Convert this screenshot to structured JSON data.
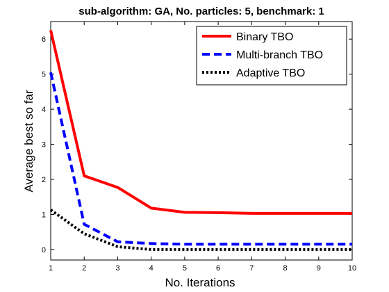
{
  "chart_data": {
    "type": "line",
    "title": "sub-algorithm: GA, No. particles: 5, benchmark: 1",
    "xlabel": "No. Iterations",
    "ylabel": "Average best so far",
    "xlim": [
      1,
      10
    ],
    "ylim": [
      -0.3,
      6.5
    ],
    "xticks": [
      "1",
      "2",
      "3",
      "4",
      "5",
      "6",
      "7",
      "8",
      "9",
      "10"
    ],
    "yticks": [
      "0",
      "1",
      "2",
      "3",
      "4",
      "5",
      "6"
    ],
    "grid": false,
    "legend_position": "top-right",
    "x": [
      1,
      2,
      3,
      4,
      5,
      6,
      7,
      8,
      9,
      10
    ],
    "series": [
      {
        "name": "Binary TBO",
        "color": "#ff0000",
        "style": "solid",
        "values": [
          6.25,
          2.1,
          1.77,
          1.18,
          1.06,
          1.05,
          1.03,
          1.03,
          1.03,
          1.03
        ]
      },
      {
        "name": "Multi-branch TBO",
        "color": "#0000ff",
        "style": "dashed",
        "values": [
          5.05,
          0.72,
          0.22,
          0.17,
          0.15,
          0.15,
          0.15,
          0.15,
          0.15,
          0.15
        ]
      },
      {
        "name": "Adaptive TBO",
        "color": "#000000",
        "style": "dotted",
        "values": [
          1.13,
          0.45,
          0.08,
          0.0,
          0.0,
          0.0,
          0.0,
          0.0,
          0.0,
          0.0
        ]
      }
    ]
  }
}
